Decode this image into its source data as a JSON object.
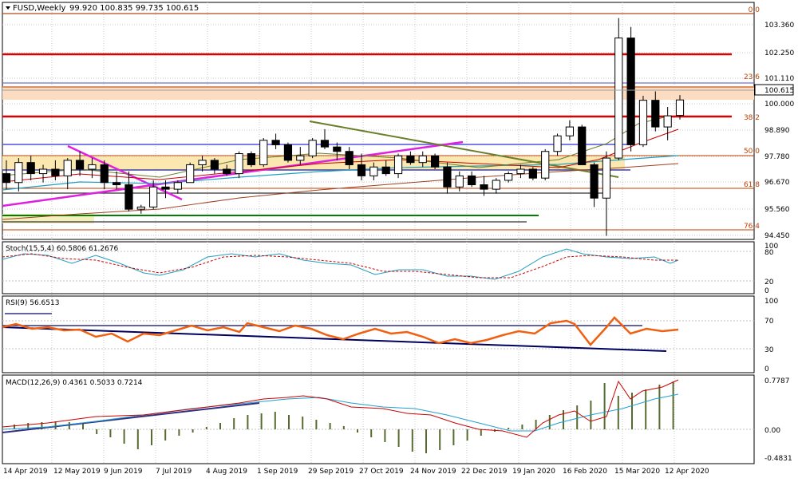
{
  "header": {
    "symbol": "FUSD,Weekly",
    "ohlc": "99.920 100.835 99.735 100.615"
  },
  "price_axis": {
    "ticks": [
      "103.360",
      "102.250",
      "101.110",
      "100.000",
      "98.890",
      "97.780",
      "96.670",
      "95.560",
      "94.450"
    ],
    "current_price": "100.615"
  },
  "fib_labels": [
    "0.0",
    "23.6",
    "38.2",
    "50.0",
    "61.8",
    "76.4"
  ],
  "stoch": {
    "label": "Stoch(15,5,4) 60.5806 61.2676",
    "levels": [
      "100",
      "80",
      "20",
      "0"
    ]
  },
  "rsi": {
    "label": "RSI(9) 56.6513",
    "levels": [
      "100",
      "70",
      "30",
      "0"
    ]
  },
  "macd": {
    "label": "MACD(12,26,9) 0.4361 0.5033 0.7214",
    "levels": [
      "0.7787",
      "0.00",
      "-0.4831"
    ]
  },
  "time_axis": [
    "14 Apr 2019",
    "12 May 2019",
    "9 Jun 2019",
    "7 Jul 2019",
    "4 Aug 2019",
    "1 Sep 2019",
    "29 Sep 2019",
    "27 Oct 2019",
    "24 Nov 2019",
    "22 Dec 2019",
    "19 Jan 2020",
    "16 Feb 2020",
    "15 Mar 2020",
    "12 Apr 2020"
  ],
  "colors": {
    "up_candle": "#ffffff",
    "down_candle": "#000000",
    "resistance": "#dd0000",
    "fib": "#c04000",
    "stoch_main": "#20a0c0",
    "stoch_signal": "#cc0000",
    "rsi_line": "#f06010",
    "macd_hist": "#556b2f",
    "macd_main": "#cc0000",
    "macd_signal": "#20a0d0"
  },
  "chart_data": {
    "type": "candlestick",
    "ylim": [
      94.45,
      104.5
    ],
    "candles": [
      {
        "o": 97.3,
        "h": 97.9,
        "l": 96.6,
        "c": 96.9
      },
      {
        "o": 96.9,
        "h": 98.0,
        "l": 96.5,
        "c": 97.8
      },
      {
        "o": 97.8,
        "h": 98.1,
        "l": 97.0,
        "c": 97.3
      },
      {
        "o": 97.3,
        "h": 97.7,
        "l": 96.9,
        "c": 97.5
      },
      {
        "o": 97.5,
        "h": 97.9,
        "l": 97.0,
        "c": 97.2
      },
      {
        "o": 97.2,
        "h": 98.0,
        "l": 96.6,
        "c": 97.9
      },
      {
        "o": 97.9,
        "h": 98.3,
        "l": 97.2,
        "c": 97.5
      },
      {
        "o": 97.5,
        "h": 98.0,
        "l": 97.1,
        "c": 97.7
      },
      {
        "o": 97.7,
        "h": 97.9,
        "l": 96.6,
        "c": 96.9
      },
      {
        "o": 96.9,
        "h": 97.4,
        "l": 96.6,
        "c": 96.8
      },
      {
        "o": 96.8,
        "h": 97.4,
        "l": 95.6,
        "c": 95.7
      },
      {
        "o": 95.7,
        "h": 95.9,
        "l": 95.5,
        "c": 95.8
      },
      {
        "o": 95.8,
        "h": 97.0,
        "l": 95.7,
        "c": 96.7
      },
      {
        "o": 96.7,
        "h": 97.0,
        "l": 96.2,
        "c": 96.6
      },
      {
        "o": 96.6,
        "h": 97.0,
        "l": 96.4,
        "c": 96.9
      },
      {
        "o": 96.9,
        "h": 97.8,
        "l": 96.9,
        "c": 97.7
      },
      {
        "o": 97.7,
        "h": 98.1,
        "l": 97.4,
        "c": 97.9
      },
      {
        "o": 97.9,
        "h": 98.0,
        "l": 97.3,
        "c": 97.5
      },
      {
        "o": 97.5,
        "h": 97.7,
        "l": 97.2,
        "c": 97.3
      },
      {
        "o": 97.3,
        "h": 98.3,
        "l": 97.1,
        "c": 98.2
      },
      {
        "o": 98.2,
        "h": 98.3,
        "l": 97.6,
        "c": 97.7
      },
      {
        "o": 97.7,
        "h": 98.9,
        "l": 97.6,
        "c": 98.8
      },
      {
        "o": 98.8,
        "h": 99.1,
        "l": 98.4,
        "c": 98.6
      },
      {
        "o": 98.6,
        "h": 98.7,
        "l": 97.8,
        "c": 97.9
      },
      {
        "o": 97.9,
        "h": 98.5,
        "l": 97.7,
        "c": 98.1
      },
      {
        "o": 98.1,
        "h": 98.9,
        "l": 98.0,
        "c": 98.8
      },
      {
        "o": 98.8,
        "h": 99.3,
        "l": 98.4,
        "c": 98.5
      },
      {
        "o": 98.5,
        "h": 98.7,
        "l": 97.9,
        "c": 98.3
      },
      {
        "o": 98.3,
        "h": 98.5,
        "l": 97.5,
        "c": 97.7
      },
      {
        "o": 97.7,
        "h": 98.2,
        "l": 97.0,
        "c": 97.2
      },
      {
        "o": 97.2,
        "h": 97.8,
        "l": 97.0,
        "c": 97.6
      },
      {
        "o": 97.6,
        "h": 97.9,
        "l": 97.2,
        "c": 97.3
      },
      {
        "o": 97.3,
        "h": 98.2,
        "l": 97.1,
        "c": 98.1
      },
      {
        "o": 98.1,
        "h": 98.3,
        "l": 97.7,
        "c": 97.8
      },
      {
        "o": 97.8,
        "h": 98.3,
        "l": 97.6,
        "c": 98.1
      },
      {
        "o": 98.1,
        "h": 98.2,
        "l": 97.5,
        "c": 97.6
      },
      {
        "o": 97.6,
        "h": 97.8,
        "l": 96.4,
        "c": 96.7
      },
      {
        "o": 96.7,
        "h": 97.4,
        "l": 96.5,
        "c": 97.2
      },
      {
        "o": 97.2,
        "h": 97.4,
        "l": 96.7,
        "c": 96.8
      },
      {
        "o": 96.8,
        "h": 97.2,
        "l": 96.3,
        "c": 96.6
      },
      {
        "o": 96.6,
        "h": 97.1,
        "l": 96.4,
        "c": 97.0
      },
      {
        "o": 97.0,
        "h": 97.4,
        "l": 96.9,
        "c": 97.3
      },
      {
        "o": 97.3,
        "h": 97.7,
        "l": 97.1,
        "c": 97.5
      },
      {
        "o": 97.5,
        "h": 97.6,
        "l": 97.0,
        "c": 97.1
      },
      {
        "o": 97.1,
        "h": 98.4,
        "l": 97.0,
        "c": 98.3
      },
      {
        "o": 98.3,
        "h": 99.1,
        "l": 98.1,
        "c": 99.0
      },
      {
        "o": 99.0,
        "h": 99.7,
        "l": 98.8,
        "c": 99.4
      },
      {
        "o": 99.4,
        "h": 99.5,
        "l": 97.7,
        "c": 97.7
      },
      {
        "o": 97.7,
        "h": 97.8,
        "l": 95.8,
        "c": 96.2
      },
      {
        "o": 96.2,
        "h": 98.3,
        "l": 94.5,
        "c": 98.0
      },
      {
        "o": 98.0,
        "h": 104.3,
        "l": 97.9,
        "c": 103.4
      },
      {
        "o": 103.4,
        "h": 103.9,
        "l": 98.3,
        "c": 98.6
      },
      {
        "o": 98.6,
        "h": 100.8,
        "l": 98.5,
        "c": 100.6
      },
      {
        "o": 100.6,
        "h": 101.0,
        "l": 99.2,
        "c": 99.4
      },
      {
        "o": 99.4,
        "h": 100.3,
        "l": 98.8,
        "c": 99.9
      },
      {
        "o": 99.92,
        "h": 100.835,
        "l": 99.735,
        "c": 100.615
      }
    ]
  }
}
